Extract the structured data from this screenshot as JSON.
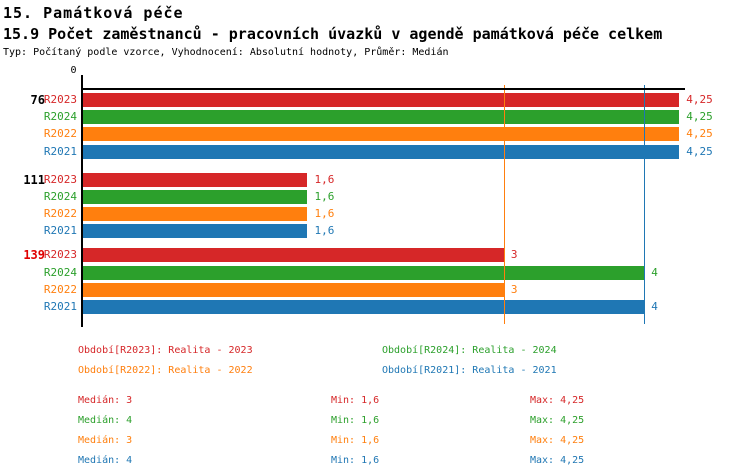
{
  "header": {
    "title": "15. Památková péče",
    "subtitle": "15.9 Počet zaměstnanců - pracovních úvazků v agendě památková péče celkem",
    "meta": "Typ: Počítaný podle vzorce, Vyhodnocení: Absolutní hodnoty, Průměr: Medián"
  },
  "colors": {
    "r2023": "#d62728",
    "r2024": "#2ca02c",
    "r2022": "#ff7f0e",
    "r2021": "#1f77b4",
    "highlight_group_label": "#e00000",
    "axis": "#000000"
  },
  "chart_data": {
    "type": "bar",
    "orientation": "horizontal",
    "title": "15.9 Počet zaměstnanců - pracovních úvazků v agendě památková péče celkem",
    "value_axis": {
      "min": 0,
      "max": 4.25,
      "zero_label": "0",
      "grid": false
    },
    "groups": [
      {
        "label": "76",
        "label_color": "#000000",
        "bars": [
          {
            "period": "R2023",
            "color": "#d62728",
            "value": 4.25,
            "value_label": "4,25"
          },
          {
            "period": "R2024",
            "color": "#2ca02c",
            "value": 4.25,
            "value_label": "4,25"
          },
          {
            "period": "R2022",
            "color": "#ff7f0e",
            "value": 4.25,
            "value_label": "4,25"
          },
          {
            "period": "R2021",
            "color": "#1f77b4",
            "value": 4.25,
            "value_label": "4,25"
          }
        ]
      },
      {
        "label": "111",
        "label_color": "#000000",
        "bars": [
          {
            "period": "R2023",
            "color": "#d62728",
            "value": 1.6,
            "value_label": "1,6"
          },
          {
            "period": "R2024",
            "color": "#2ca02c",
            "value": 1.6,
            "value_label": "1,6"
          },
          {
            "period": "R2022",
            "color": "#ff7f0e",
            "value": 1.6,
            "value_label": "1,6"
          },
          {
            "period": "R2021",
            "color": "#1f77b4",
            "value": 1.6,
            "value_label": "1,6"
          }
        ]
      },
      {
        "label": "139",
        "label_color": "#e00000",
        "bars": [
          {
            "period": "R2023",
            "color": "#d62728",
            "value": 3,
            "value_label": "3"
          },
          {
            "period": "R2024",
            "color": "#2ca02c",
            "value": 4,
            "value_label": "4"
          },
          {
            "period": "R2022",
            "color": "#ff7f0e",
            "value": 3,
            "value_label": "3"
          },
          {
            "period": "R2021",
            "color": "#1f77b4",
            "value": 4,
            "value_label": "4"
          }
        ]
      }
    ],
    "median_lines": [
      {
        "name": "R2023",
        "color": "#d62728",
        "value": 3
      },
      {
        "name": "R2024",
        "color": "#2ca02c",
        "value": 4
      },
      {
        "name": "R2022",
        "color": "#ff7f0e",
        "value": 3
      },
      {
        "name": "R2021",
        "color": "#1f77b4",
        "value": 4
      }
    ]
  },
  "legend": {
    "items": [
      {
        "text": "Období[R2023]: Realita - 2023",
        "color": "#d62728",
        "column": 0,
        "row": 0
      },
      {
        "text": "Období[R2024]: Realita - 2024",
        "color": "#2ca02c",
        "column": 1,
        "row": 0
      },
      {
        "text": "Období[R2022]: Realita - 2022",
        "color": "#ff7f0e",
        "column": 0,
        "row": 1
      },
      {
        "text": "Období[R2021]: Realita - 2021",
        "color": "#1f77b4",
        "column": 1,
        "row": 1
      }
    ]
  },
  "stats": {
    "rows": [
      {
        "color": "#d62728",
        "median": "Medián: 3",
        "min": "Min: 1,6",
        "max": "Max: 4,25"
      },
      {
        "color": "#2ca02c",
        "median": "Medián: 4",
        "min": "Min: 1,6",
        "max": "Max: 4,25"
      },
      {
        "color": "#ff7f0e",
        "median": "Medián: 3",
        "min": "Min: 1,6",
        "max": "Max: 4,25"
      },
      {
        "color": "#1f77b4",
        "median": "Medián: 4",
        "min": "Min: 1,6",
        "max": "Max: 4,25"
      }
    ]
  }
}
